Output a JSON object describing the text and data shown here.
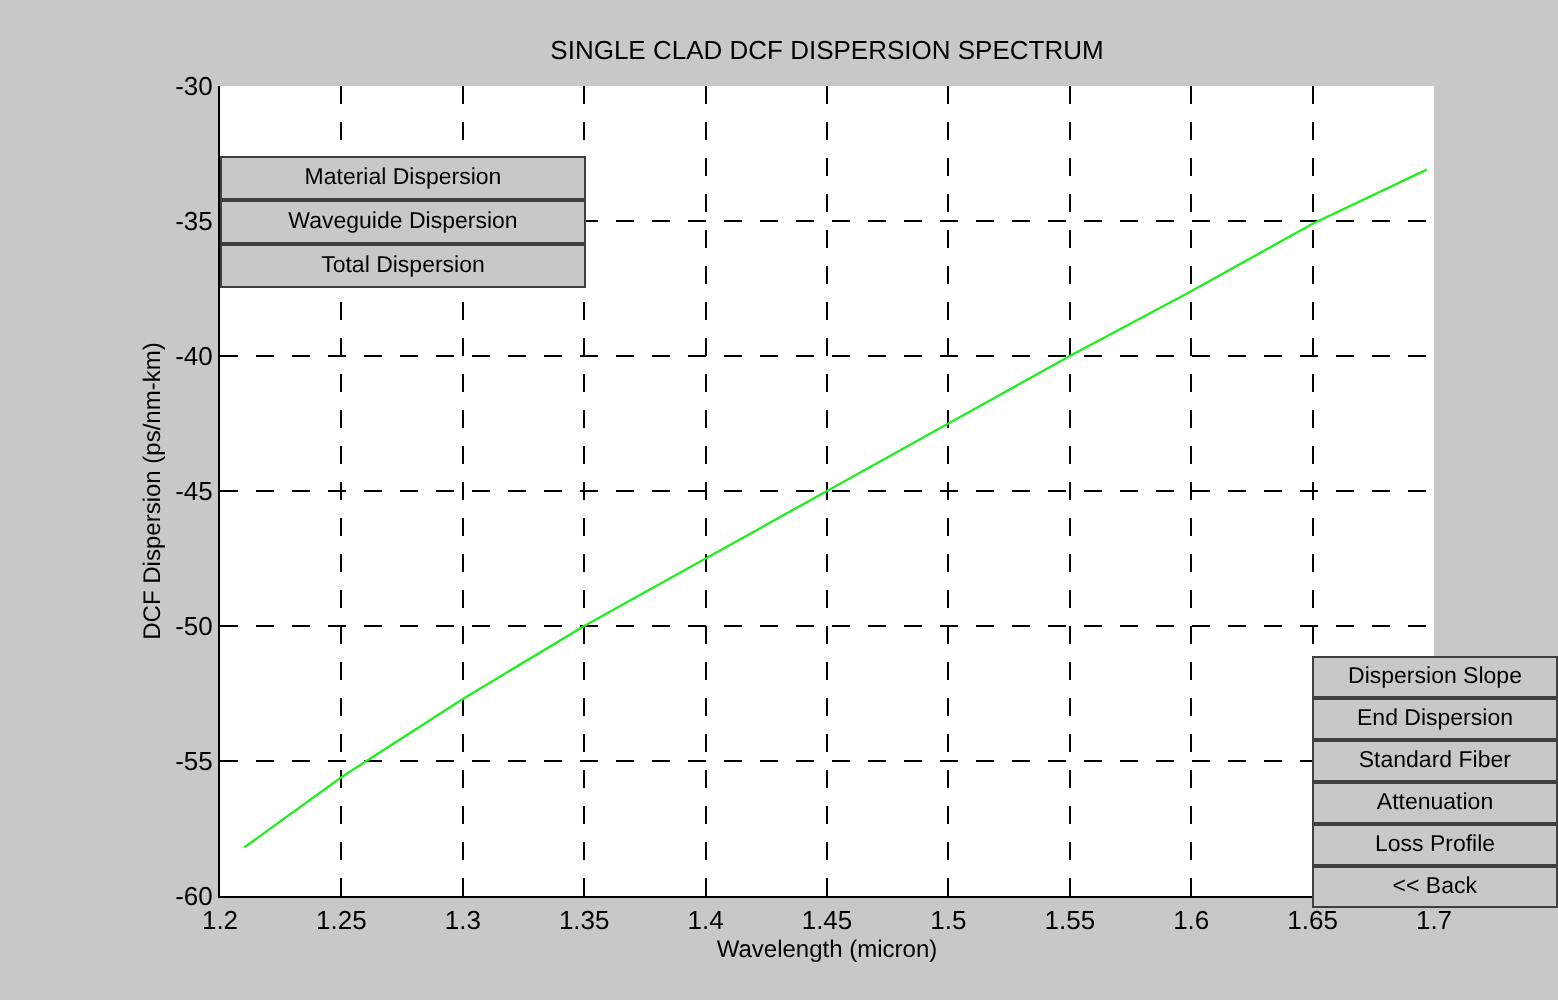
{
  "chart_data": {
    "type": "line",
    "title": "SINGLE CLAD DCF DISPERSION SPECTRUM",
    "xlabel": "Wavelength (micron)",
    "ylabel": "DCF Dispersion (ps/nm-km)",
    "x": [
      1.21,
      1.25,
      1.3,
      1.35,
      1.4,
      1.45,
      1.5,
      1.55,
      1.6,
      1.65,
      1.697
    ],
    "series": [
      {
        "color": "#22ee22",
        "values": [
          -58.2,
          -55.6,
          -52.7,
          -50,
          -47.5,
          -45,
          -42.5,
          -40,
          -37.6,
          -35.1,
          -33.1
        ]
      }
    ],
    "xlim": [
      1.2,
      1.7
    ],
    "xticks": [
      1.2,
      1.25,
      1.3,
      1.35,
      1.4,
      1.45,
      1.5,
      1.55,
      1.6,
      1.65,
      1.7
    ],
    "ylim": [
      -60,
      -30
    ],
    "yticks": [
      -60,
      -55,
      -50,
      -45,
      -40,
      -35,
      -30
    ],
    "grid": true,
    "marker": "none",
    "line_style": "solid",
    "annotations": [
      "Material Dispersion",
      "Waveguide Dispersion",
      "Total Dispersion",
      "Dispersion Slope",
      "End Dispersion",
      "Standard Fiber",
      "Attenuation",
      "Loss Profile",
      "<< Back"
    ]
  }
}
